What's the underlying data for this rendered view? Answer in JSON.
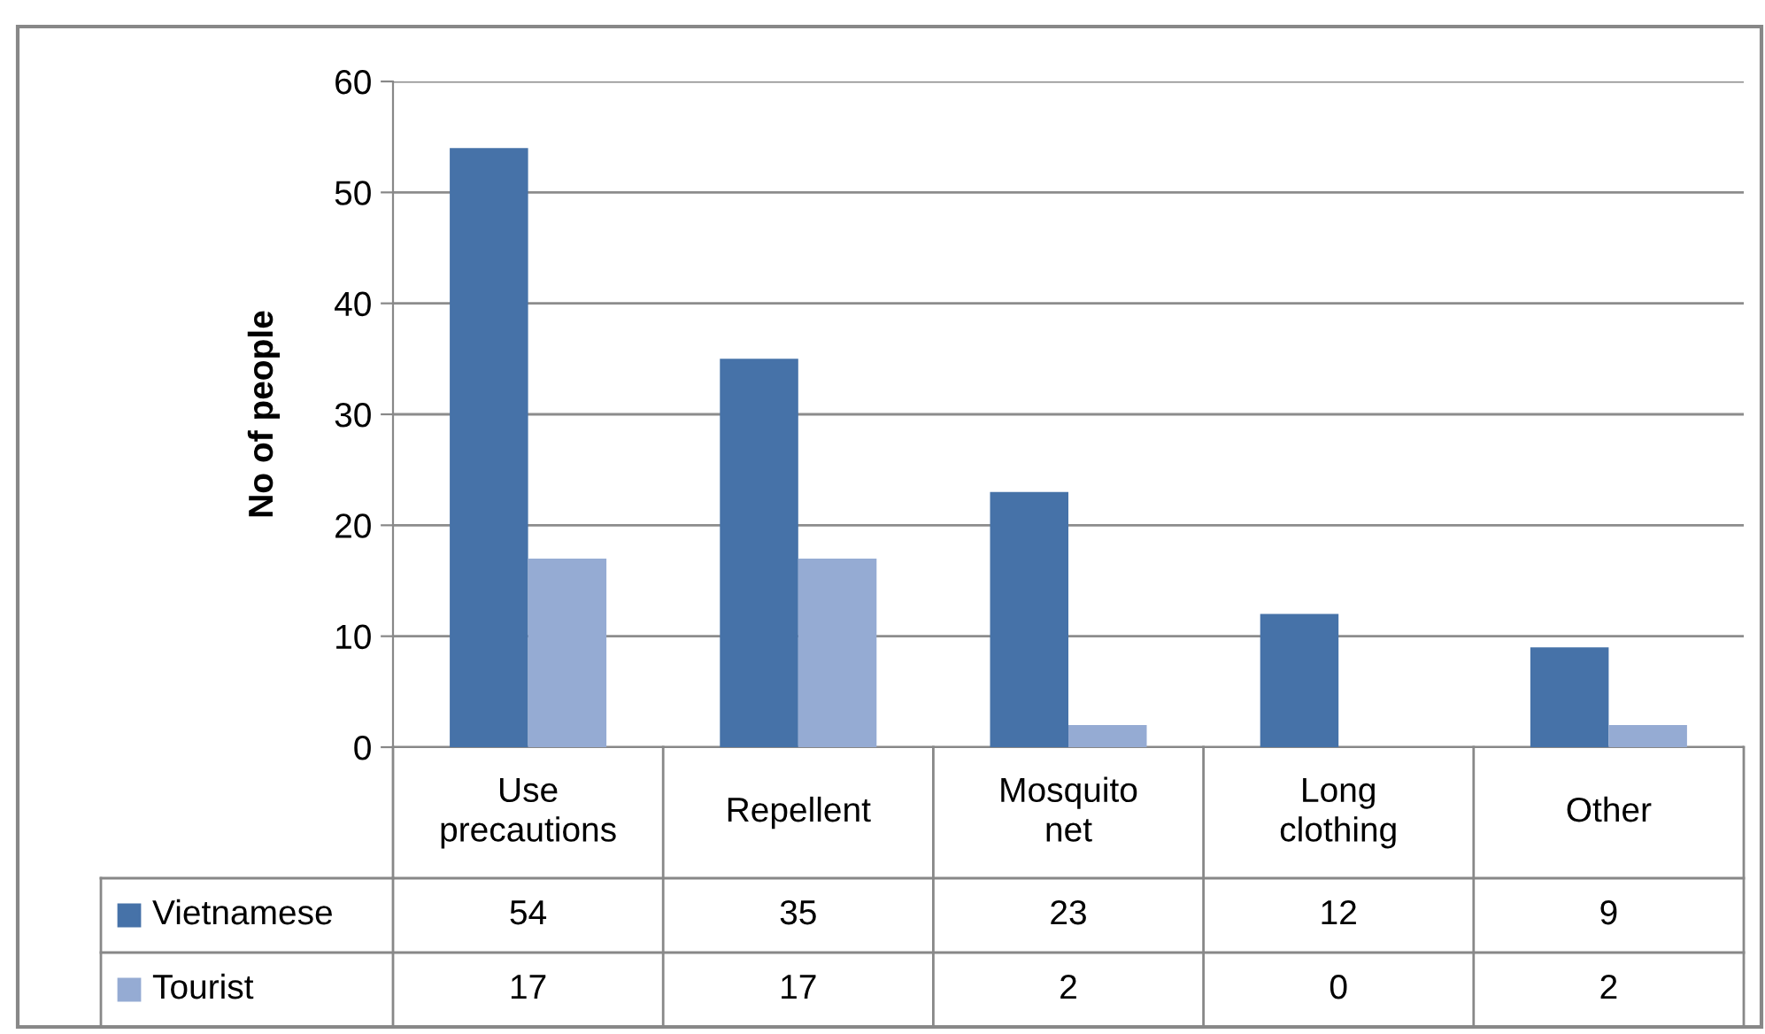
{
  "chart_data": {
    "type": "bar",
    "ylabel": "No of people",
    "categories": [
      "Use precautions",
      "Repellent",
      "Mosquito net",
      "Long clothing",
      "Other"
    ],
    "series": [
      {
        "name": "Vietnamese",
        "color": "#4672a8",
        "values": [
          54,
          35,
          23,
          12,
          9
        ]
      },
      {
        "name": "Tourist",
        "color": "#95abd3",
        "values": [
          17,
          17,
          2,
          0,
          2
        ]
      }
    ],
    "ylim": [
      0,
      60
    ],
    "yticks": [
      0,
      10,
      20,
      30,
      40,
      50,
      60
    ],
    "grid": "y",
    "legend": "bottom",
    "data_labels": true
  }
}
